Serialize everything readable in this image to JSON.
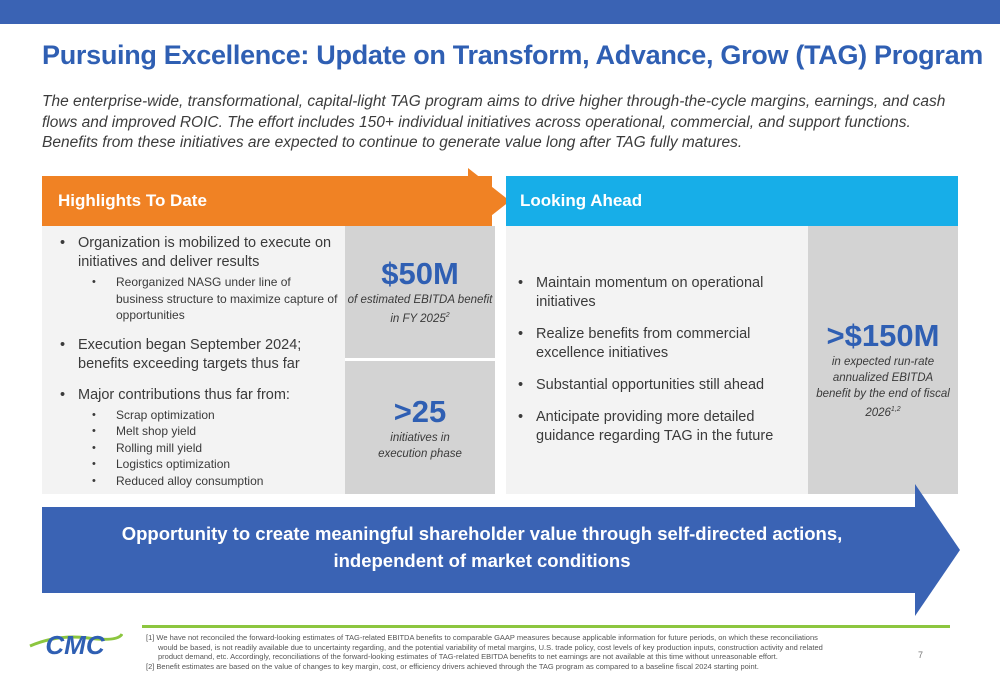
{
  "slide": {
    "title": "Pursuing Excellence: Update on Transform, Advance, Grow (TAG) Program",
    "subtitle": "The enterprise-wide, transformational, capital-light TAG program aims to drive higher through-the-cycle margins, earnings, and cash flows and improved ROIC.  The effort includes 150+ individual initiatives across operational, commercial, and support functions.  Benefits from these initiatives are expected to continue to generate value long after TAG fully matures.",
    "page_number": "7"
  },
  "highlights": {
    "header": "Highlights To Date",
    "items": [
      {
        "text": "Organization is mobilized to execute on initiatives and deliver results",
        "sub": [
          "Reorganized NASG under line of business structure to maximize capture of opportunities"
        ]
      },
      {
        "text": "Execution began September 2024; benefits exceeding targets thus far",
        "sub": []
      },
      {
        "text": "Major contributions thus far from:",
        "sub": [
          "Scrap optimization",
          "Melt shop yield",
          "Rolling mill yield",
          "Logistics optimization",
          "Reduced alloy consumption"
        ]
      }
    ],
    "stat1": {
      "value": "$50M",
      "caption": "of estimated EBITDA benefit in FY 2025",
      "footnote_ref": "2"
    },
    "stat2": {
      "value": ">25",
      "caption": "initiatives in execution phase"
    }
  },
  "looking_ahead": {
    "header": "Looking Ahead",
    "items": [
      "Maintain momentum on operational initiatives",
      "Realize benefits from commercial excellence initiatives",
      "Substantial opportunities still ahead",
      "Anticipate providing more detailed guidance regarding TAG in the future"
    ],
    "stat": {
      "value": ">$150M",
      "caption": "in expected run-rate annualized EBITDA benefit by the end of fiscal 2026",
      "footnote_ref": "1,2"
    }
  },
  "banner": {
    "line1": "Opportunity to create meaningful shareholder value through self-directed actions,",
    "line2": "independent of market conditions"
  },
  "footnotes": {
    "f1_line1": "[1] We have not reconciled the forward-looking estimates of TAG-related EBITDA benefits to comparable GAAP measures because applicable information for future periods, on which these reconciliations",
    "f1_line2": "would be based, is not readily available due to uncertainty regarding, and the potential variability of metal margins, U.S. trade policy, cost levels of key production inputs, construction activity and related",
    "f1_line3": "product demand, etc. Accordingly, reconciliations of the forward-looking estimates of TAG-related EBITDA benefits to net earnings are not available at this time without unreasonable effort.",
    "f2": "[2] Benefit estimates are based on the value of changes to key margin, cost, or efficiency drivers achieved through the TAG program as compared to a baseline fiscal 2024 starting point."
  },
  "logo": {
    "text": "CMC"
  },
  "colors": {
    "blue": "#3a63b4",
    "orange": "#f08224",
    "cyan": "#17aee8",
    "green": "#8cc63f"
  }
}
